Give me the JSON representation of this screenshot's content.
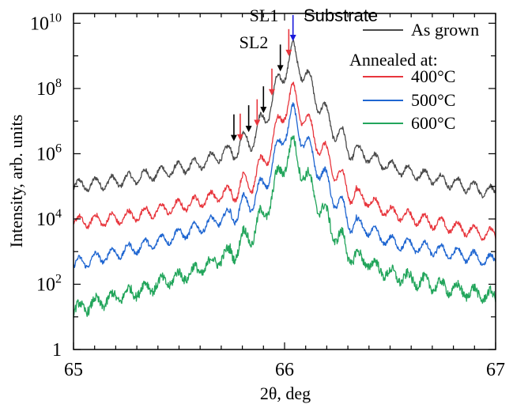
{
  "chart_data": {
    "type": "line",
    "xlabel": "2θ, deg",
    "ylabel": "Intensity, arb. units",
    "xlim": [
      65,
      67
    ],
    "ylim_log10": [
      0,
      10.3
    ],
    "yscale": "log",
    "x_ticks": [
      {
        "value": 65,
        "label": "65"
      },
      {
        "value": 66,
        "label": "66"
      },
      {
        "value": 67,
        "label": "67"
      }
    ],
    "y_ticks": [
      {
        "exp": 0,
        "base": "1",
        "sup": ""
      },
      {
        "exp": 2,
        "base": "10",
        "sup": "2"
      },
      {
        "exp": 4,
        "base": "10",
        "sup": "4"
      },
      {
        "exp": 6,
        "base": "10",
        "sup": "6"
      },
      {
        "exp": 8,
        "base": "10",
        "sup": "8"
      },
      {
        "exp": 10,
        "base": "10",
        "sup": "10"
      }
    ],
    "legend": {
      "position": "top-right",
      "header": "Annealed at:",
      "entries": [
        {
          "label": "As grown",
          "color": "#4a4a4a"
        },
        {
          "label": "400°C",
          "color": "#e8363d"
        },
        {
          "label": "500°C",
          "color": "#1f66d1"
        },
        {
          "label": "600°C",
          "color": "#22a55b"
        }
      ]
    },
    "annotations": {
      "sl1": {
        "label": "SL1",
        "color": "#e8363d",
        "peaks_2theta": [
          65.79,
          65.87,
          65.94,
          66.02
        ]
      },
      "sl2": {
        "label": "SL2",
        "color": "#000000",
        "peaks_2theta": [
          65.76,
          65.83,
          65.9,
          65.98
        ]
      },
      "substrate": {
        "label": "Substrate",
        "color": "#1a1adb",
        "peak_2theta": 66.04
      }
    },
    "series": [
      {
        "name": "As grown",
        "color": "#4a4a4a",
        "peak_x": 66.04,
        "peak_log10": 9.1,
        "x": [
          65.0,
          65.2,
          65.4,
          65.6,
          65.75,
          65.85,
          65.9,
          65.95,
          66.0,
          66.04,
          66.1,
          66.2,
          66.3,
          66.5,
          66.8,
          67.0
        ],
        "log10_y": [
          5.0,
          5.15,
          5.4,
          5.7,
          6.1,
          6.5,
          7.0,
          7.8,
          8.6,
          9.1,
          8.4,
          7.1,
          6.2,
          5.6,
          5.1,
          4.8
        ]
      },
      {
        "name": "400°C",
        "color": "#e8363d",
        "peak_x": 66.04,
        "peak_log10": 7.85,
        "x": [
          65.0,
          65.2,
          65.4,
          65.6,
          65.75,
          65.85,
          65.9,
          65.95,
          66.0,
          66.04,
          66.1,
          66.2,
          66.3,
          66.5,
          66.8,
          67.0
        ],
        "log10_y": [
          3.9,
          4.0,
          4.25,
          4.55,
          4.85,
          5.2,
          5.7,
          6.5,
          7.4,
          7.85,
          7.0,
          5.9,
          4.9,
          4.2,
          3.75,
          3.5
        ]
      },
      {
        "name": "500°C",
        "color": "#1f66d1",
        "peak_x": 66.04,
        "peak_log10": 7.2,
        "x": [
          65.0,
          65.2,
          65.4,
          65.6,
          65.75,
          65.85,
          65.9,
          65.95,
          66.0,
          66.04,
          66.1,
          66.2,
          66.3,
          66.5,
          66.8,
          67.0
        ],
        "log10_y": [
          2.6,
          2.95,
          3.3,
          3.75,
          4.15,
          4.6,
          5.0,
          5.8,
          6.7,
          7.2,
          6.3,
          5.1,
          4.0,
          3.3,
          2.95,
          2.7
        ]
      },
      {
        "name": "600°C",
        "color": "#22a55b",
        "peak_x": 66.04,
        "peak_log10": 6.2,
        "x": [
          65.0,
          65.2,
          65.4,
          65.6,
          65.75,
          65.85,
          65.9,
          65.95,
          66.0,
          66.04,
          66.1,
          66.2,
          66.3,
          66.5,
          66.8,
          67.0
        ],
        "log10_y": [
          1.2,
          1.6,
          2.0,
          2.45,
          3.0,
          3.6,
          4.1,
          4.9,
          5.8,
          6.2,
          5.3,
          4.0,
          3.0,
          2.3,
          1.85,
          1.6
        ]
      }
    ]
  }
}
